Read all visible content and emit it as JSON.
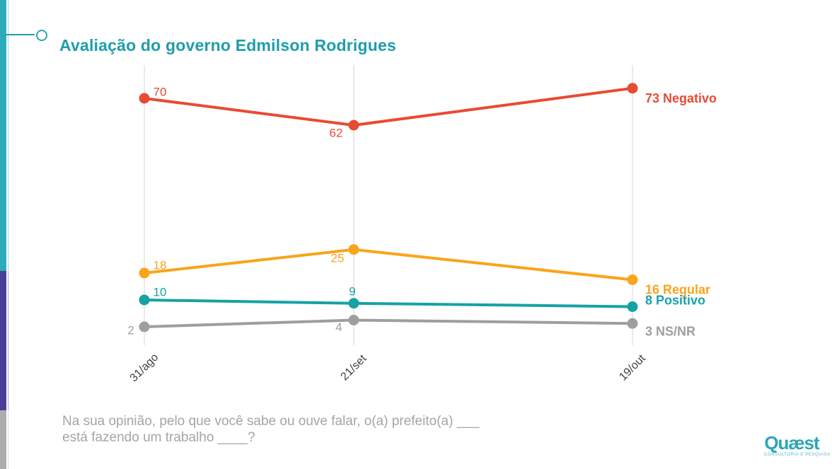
{
  "page": {
    "title": "Avaliação do governo Edmilson Rodrigues"
  },
  "colors": {
    "title_teal": "#1E9DAB",
    "accent_teal": "#2CABB9",
    "accent_purple": "#493E95",
    "accent_gray": "#ADADAD",
    "gridline": "#EAEAEA",
    "axis_label": "#3F3F3F",
    "footnote_gray": "#A5A5A5",
    "logo_teal": "#2BA7B5",
    "logo_caption_teal": "#55B7C2"
  },
  "chart_data": {
    "type": "line",
    "title": "Avaliação do governo Edmilson Rodrigues",
    "categories": [
      "31/ago",
      "21/set",
      "19/out"
    ],
    "series": [
      {
        "name": "Negativo",
        "color": "#E74B33",
        "values": [
          70,
          62,
          73
        ],
        "end_label": "73 Negativo"
      },
      {
        "name": "Regular",
        "color": "#F9A41B",
        "values": [
          18,
          25,
          16
        ],
        "end_label": "16 Regular"
      },
      {
        "name": "Positivo",
        "color": "#16A2A4",
        "values": [
          10,
          9,
          8
        ],
        "end_label": "8 Positivo"
      },
      {
        "name": "NS/NR",
        "color": "#9E9E9E",
        "values": [
          2,
          4,
          3
        ],
        "end_label": "3 NS/NR"
      }
    ],
    "xlabel": "",
    "ylabel": "",
    "ylim": [
      0,
      80
    ],
    "grid": "vertical gridline at each category",
    "legend_position": "labels at right end of each line",
    "point_labels_shown": true
  },
  "footnote": {
    "line1": "Na sua opinião, pelo que você sabe ou ouve falar, o(a) prefeito(a) ___",
    "line2": "está fazendo um trabalho ____?"
  },
  "logo": {
    "name": "Quæst",
    "caption": "CONSULTORIA E PESQUISA"
  }
}
